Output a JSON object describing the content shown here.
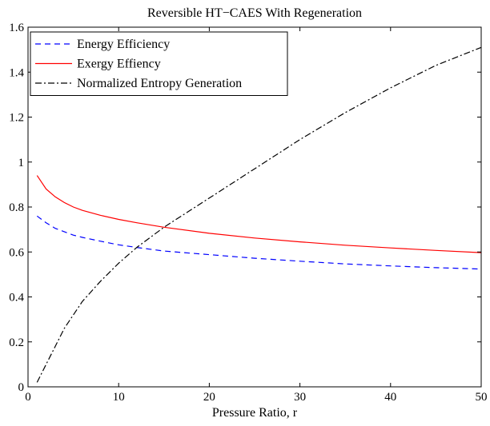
{
  "chart_data": {
    "type": "line",
    "title": "Reversible HT−CAES With Regeneration",
    "xlabel": "Pressure Ratio, r",
    "ylabel": "",
    "xlim": [
      0,
      50
    ],
    "ylim": [
      0,
      1.6
    ],
    "xticks": [
      0,
      10,
      20,
      30,
      40,
      50
    ],
    "yticks": [
      0,
      0.2,
      0.4,
      0.6,
      0.8,
      1,
      1.2,
      1.4,
      1.6
    ],
    "grid": false,
    "legend_position": "top-left",
    "series": [
      {
        "name": "Energy Efficiency",
        "color": "#0000ff",
        "style": "dashed",
        "x": [
          1,
          2,
          3,
          4,
          5,
          6,
          8,
          10,
          12,
          15,
          20,
          25,
          30,
          35,
          40,
          45,
          50
        ],
        "y": [
          0.76,
          0.73,
          0.705,
          0.69,
          0.675,
          0.665,
          0.648,
          0.632,
          0.62,
          0.604,
          0.588,
          0.572,
          0.559,
          0.547,
          0.538,
          0.53,
          0.524
        ]
      },
      {
        "name": "Exergy Effiency",
        "color": "#ff0000",
        "style": "solid",
        "x": [
          1,
          2,
          3,
          4,
          5,
          6,
          8,
          10,
          12,
          15,
          20,
          25,
          30,
          35,
          40,
          45,
          50
        ],
        "y": [
          0.94,
          0.88,
          0.845,
          0.82,
          0.8,
          0.785,
          0.763,
          0.745,
          0.73,
          0.71,
          0.683,
          0.662,
          0.645,
          0.63,
          0.618,
          0.607,
          0.597
        ]
      },
      {
        "name": "Normalized Entropy Generation",
        "color": "#000000",
        "style": "dashdot",
        "x": [
          1,
          2,
          3,
          4,
          5,
          6,
          8,
          10,
          12,
          15,
          20,
          25,
          30,
          35,
          40,
          45,
          50
        ],
        "y": [
          0.02,
          0.1,
          0.18,
          0.26,
          0.32,
          0.38,
          0.47,
          0.55,
          0.62,
          0.71,
          0.84,
          0.97,
          1.1,
          1.22,
          1.33,
          1.43,
          1.51
        ]
      }
    ]
  }
}
